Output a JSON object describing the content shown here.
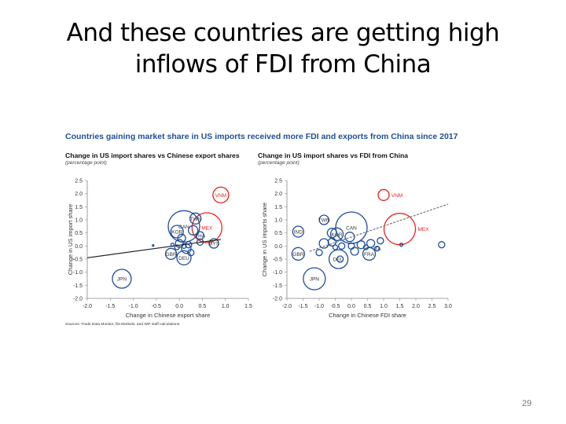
{
  "slide": {
    "title_line1": "And these countries are getting high",
    "title_line2": "inflows of FDI from China",
    "page_number": "29"
  },
  "figure": {
    "title": "Countries gaining market share in US imports received more FDI and exports from China since 2017",
    "source": "Sources: Trade Data Monitor; fDi Markets; and IMF staff calculations."
  },
  "colors": {
    "blue": "#1f4e9a",
    "red": "#e8231f",
    "line": "#222222"
  },
  "chart_data": [
    {
      "type": "scatter",
      "title": "Change in US import shares vs Chinese export shares",
      "subtitle": "(percentage point)",
      "xlabel": "Change in Chinese export share",
      "ylabel": "Change in US import share",
      "xlim": [
        -2.0,
        1.5
      ],
      "ylim": [
        -2.0,
        2.5
      ],
      "xticks": [
        "-2.0",
        "-1.5",
        "-1.0",
        "-0.5",
        "0.0",
        "0.5",
        "1.0",
        "1.5"
      ],
      "yticks": [
        "2.5",
        "2.0",
        "1.5",
        "1.0",
        "0.5",
        "0.0",
        "-0.5",
        "-1.0",
        "-1.5",
        "-2.0"
      ],
      "trend": {
        "style": "solid",
        "from": [
          -2.0,
          -0.45
        ],
        "to": [
          0.9,
          0.25
        ]
      },
      "points": [
        {
          "label": "VNM",
          "x": 0.9,
          "y": 1.95,
          "size": 10,
          "highlight": true
        },
        {
          "label": "MEX",
          "x": 0.6,
          "y": 0.7,
          "size": 19,
          "highlight": true
        },
        {
          "label": "CAN",
          "x": 0.1,
          "y": 0.75,
          "size": 20
        },
        {
          "label": "TWN",
          "x": 0.35,
          "y": 1.05,
          "size": 7
        },
        {
          "label": "KOR",
          "x": -0.05,
          "y": 0.55,
          "size": 8
        },
        {
          "label": "JPN",
          "x": -1.25,
          "y": -1.25,
          "size": 12
        },
        {
          "label": "GBR",
          "x": -0.18,
          "y": -0.3,
          "size": 7
        },
        {
          "label": "DEU",
          "x": 0.1,
          "y": -0.45,
          "size": 9
        },
        {
          "label": "MYS",
          "x": 0.75,
          "y": 0.1,
          "size": 6
        },
        {
          "label": "THA",
          "x": 0.45,
          "y": 0.4,
          "size": 5
        },
        {
          "label": "",
          "x": 0.3,
          "y": 0.6,
          "size": 6
        },
        {
          "label": "",
          "x": 0.0,
          "y": 0.1,
          "size": 5
        },
        {
          "label": "",
          "x": 0.15,
          "y": -0.1,
          "size": 6
        },
        {
          "label": "",
          "x": 0.05,
          "y": 0.3,
          "size": 5
        },
        {
          "label": "",
          "x": 0.2,
          "y": 0.05,
          "size": 4
        },
        {
          "label": "",
          "x": 0.45,
          "y": 0.15,
          "size": 4
        },
        {
          "label": "",
          "x": -0.05,
          "y": -0.05,
          "size": 3
        },
        {
          "label": "",
          "x": 0.25,
          "y": -0.25,
          "size": 4
        },
        {
          "label": "",
          "x": 0.1,
          "y": 0.0,
          "size": 3
        },
        {
          "label": "",
          "x": -0.15,
          "y": 0.05,
          "size": 2
        },
        {
          "label": "",
          "x": -0.57,
          "y": 0.02,
          "size": 1
        }
      ]
    },
    {
      "type": "scatter",
      "title": "Change in US import shares vs FDI from China",
      "subtitle": "(percentage point)",
      "xlabel": "Change in Chinese FDI share",
      "ylabel": "Change in US imports share",
      "xlim": [
        -2.0,
        3.0
      ],
      "ylim": [
        -2.0,
        2.5
      ],
      "xticks": [
        "-2.0",
        "-1.5",
        "-1.0",
        "-0.5",
        "0.0",
        "0.5",
        "1.0",
        "1.5",
        "2.0",
        "2.5",
        "3.0"
      ],
      "yticks": [
        "2.5",
        "2.0",
        "1.5",
        "1.0",
        "0.5",
        "0.0",
        "-0.5",
        "-1.0",
        "-1.5",
        "-2.0"
      ],
      "trend": {
        "style": "dashed",
        "from": [
          -1.3,
          -0.2
        ],
        "to": [
          3.0,
          1.6
        ]
      },
      "points": [
        {
          "label": "VNM",
          "x": 1.0,
          "y": 1.95,
          "size": 7,
          "highlight": true
        },
        {
          "label": "MEX",
          "x": 1.5,
          "y": 0.65,
          "size": 20,
          "highlight": true
        },
        {
          "label": "CAN",
          "x": 0.0,
          "y": 0.7,
          "size": 20
        },
        {
          "label": "TWN",
          "x": -0.85,
          "y": 1.0,
          "size": 6
        },
        {
          "label": "IND",
          "x": -1.65,
          "y": 0.55,
          "size": 7
        },
        {
          "label": "KOR",
          "x": -0.45,
          "y": 0.45,
          "size": 8
        },
        {
          "label": "GBR",
          "x": -1.65,
          "y": -0.3,
          "size": 8
        },
        {
          "label": "JPN",
          "x": -1.15,
          "y": -1.25,
          "size": 14
        },
        {
          "label": "DEU",
          "x": -0.4,
          "y": -0.5,
          "size": 12
        },
        {
          "label": "FRA",
          "x": 0.55,
          "y": -0.3,
          "size": 8
        },
        {
          "label": "ITA",
          "x": 0.8,
          "y": -0.1,
          "size": 3
        },
        {
          "label": "",
          "x": 2.8,
          "y": 0.05,
          "size": 4
        },
        {
          "label": "",
          "x": 1.55,
          "y": 0.05,
          "size": 2
        },
        {
          "label": "",
          "x": -0.6,
          "y": 0.5,
          "size": 6
        },
        {
          "label": "",
          "x": -0.85,
          "y": 0.1,
          "size": 6
        },
        {
          "label": "",
          "x": -0.6,
          "y": 0.15,
          "size": 5
        },
        {
          "label": "",
          "x": -1.0,
          "y": -0.25,
          "size": 4
        },
        {
          "label": "",
          "x": -0.05,
          "y": 0.35,
          "size": 6
        },
        {
          "label": "",
          "x": 0.1,
          "y": -0.2,
          "size": 5
        },
        {
          "label": "",
          "x": 0.3,
          "y": 0.05,
          "size": 5
        },
        {
          "label": "",
          "x": 0.6,
          "y": 0.1,
          "size": 5
        },
        {
          "label": "",
          "x": 0.9,
          "y": 0.2,
          "size": 4
        },
        {
          "label": "",
          "x": -0.3,
          "y": 0.0,
          "size": 4
        },
        {
          "label": "",
          "x": 0.0,
          "y": 0.0,
          "size": 4
        },
        {
          "label": "",
          "x": -0.5,
          "y": -0.05,
          "size": 3
        },
        {
          "label": "",
          "x": 0.45,
          "y": -0.05,
          "size": 3
        },
        {
          "label": "",
          "x": -0.35,
          "y": -0.5,
          "size": 4
        }
      ]
    }
  ]
}
